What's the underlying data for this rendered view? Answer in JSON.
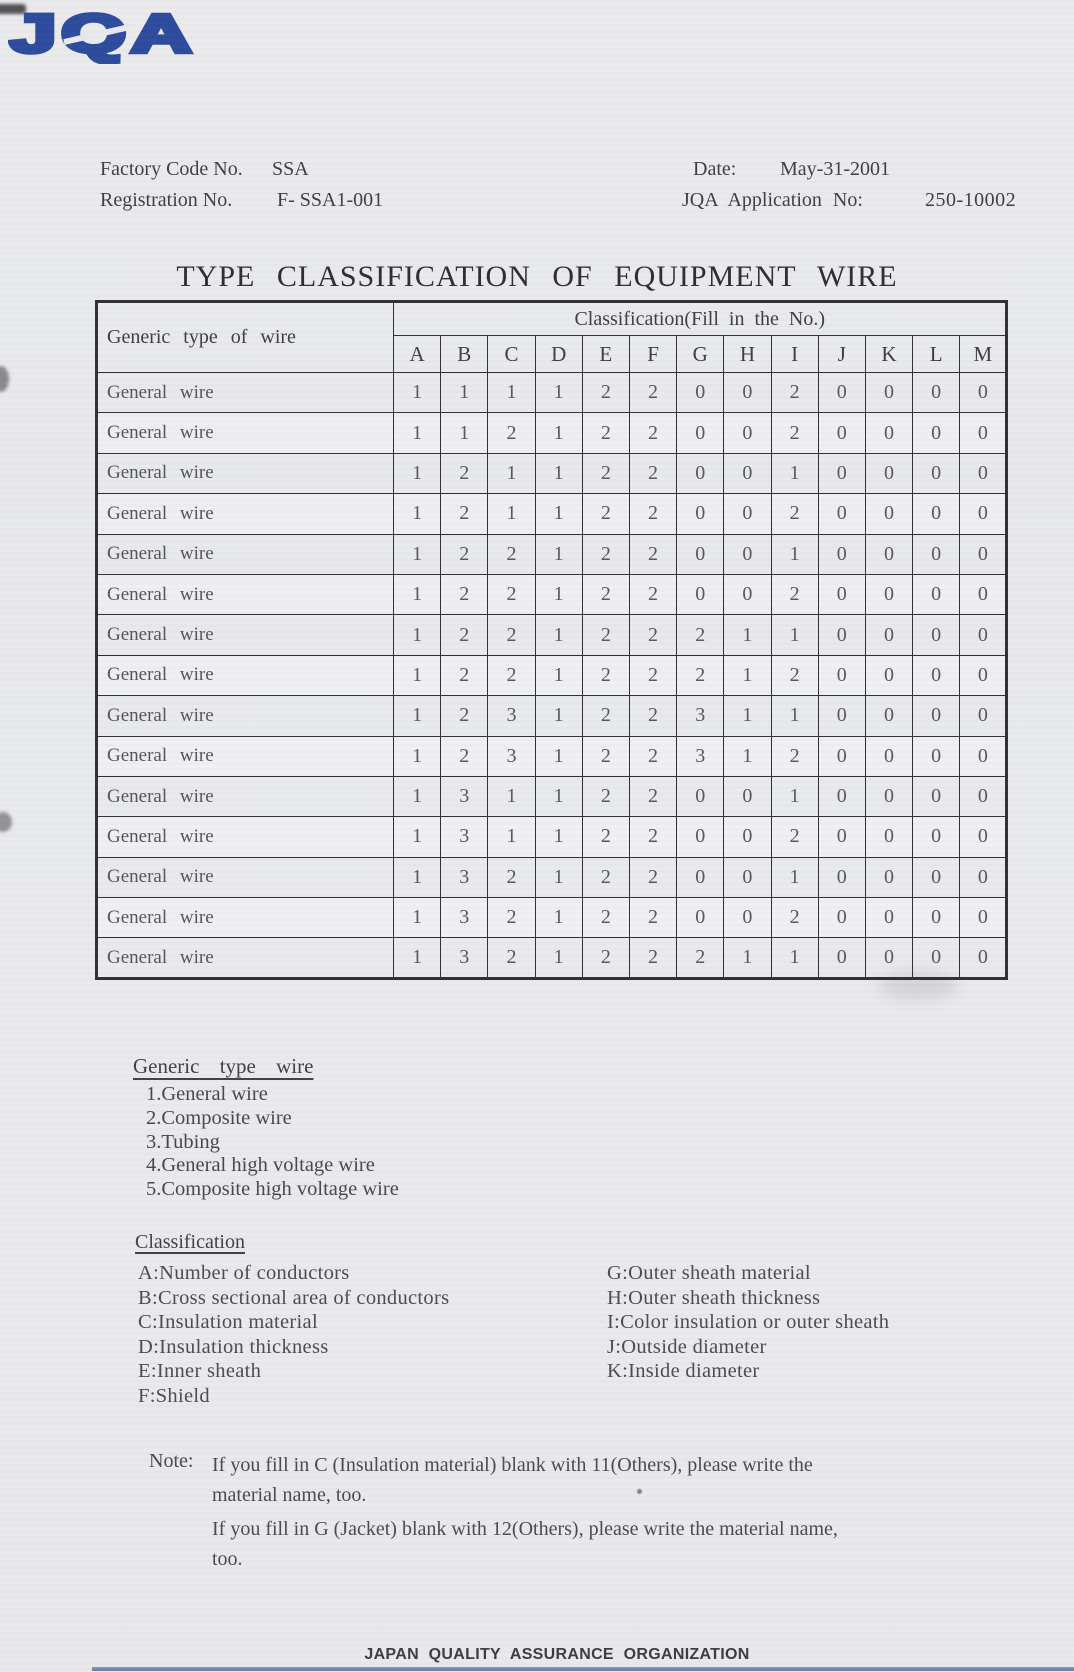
{
  "logo": {
    "text": "JQA"
  },
  "meta": {
    "factory_code_label": "Factory Code No.",
    "factory_code_value": "SSA",
    "registration_label": "Registration No.",
    "registration_value": "F- SSA1-001",
    "date_label": "Date:",
    "date_value": "May-31-2001",
    "application_label": "JQA Application No:",
    "application_value": "250-10002"
  },
  "title": "TYPE CLASSIFICATION OF EQUIPMENT WIRE",
  "table": {
    "generic_column_header": "Generic type of wire",
    "classification_header": "Classification(Fill in the No.)",
    "columns": [
      "A",
      "B",
      "C",
      "D",
      "E",
      "F",
      "G",
      "H",
      "I",
      "J",
      "K",
      "L",
      "M"
    ],
    "rows": [
      {
        "label": "General wire",
        "values": [
          "1",
          "1",
          "1",
          "1",
          "2",
          "2",
          "0",
          "0",
          "2",
          "0",
          "0",
          "0",
          "0"
        ]
      },
      {
        "label": "General wire",
        "values": [
          "1",
          "1",
          "2",
          "1",
          "2",
          "2",
          "0",
          "0",
          "2",
          "0",
          "0",
          "0",
          "0"
        ]
      },
      {
        "label": "General wire",
        "values": [
          "1",
          "2",
          "1",
          "1",
          "2",
          "2",
          "0",
          "0",
          "1",
          "0",
          "0",
          "0",
          "0"
        ]
      },
      {
        "label": "General wire",
        "values": [
          "1",
          "2",
          "1",
          "1",
          "2",
          "2",
          "0",
          "0",
          "2",
          "0",
          "0",
          "0",
          "0"
        ]
      },
      {
        "label": "General wire",
        "values": [
          "1",
          "2",
          "2",
          "1",
          "2",
          "2",
          "0",
          "0",
          "1",
          "0",
          "0",
          "0",
          "0"
        ]
      },
      {
        "label": "General wire",
        "values": [
          "1",
          "2",
          "2",
          "1",
          "2",
          "2",
          "0",
          "0",
          "2",
          "0",
          "0",
          "0",
          "0"
        ]
      },
      {
        "label": "General wire",
        "values": [
          "1",
          "2",
          "2",
          "1",
          "2",
          "2",
          "2",
          "1",
          "1",
          "0",
          "0",
          "0",
          "0"
        ]
      },
      {
        "label": "General wire",
        "values": [
          "1",
          "2",
          "2",
          "1",
          "2",
          "2",
          "2",
          "1",
          "2",
          "0",
          "0",
          "0",
          "0"
        ]
      },
      {
        "label": "General wire",
        "values": [
          "1",
          "2",
          "3",
          "1",
          "2",
          "2",
          "3",
          "1",
          "1",
          "0",
          "0",
          "0",
          "0"
        ]
      },
      {
        "label": "General wire",
        "values": [
          "1",
          "2",
          "3",
          "1",
          "2",
          "2",
          "3",
          "1",
          "2",
          "0",
          "0",
          "0",
          "0"
        ]
      },
      {
        "label": "General wire",
        "values": [
          "1",
          "3",
          "1",
          "1",
          "2",
          "2",
          "0",
          "0",
          "1",
          "0",
          "0",
          "0",
          "0"
        ]
      },
      {
        "label": "General wire",
        "values": [
          "1",
          "3",
          "1",
          "1",
          "2",
          "2",
          "0",
          "0",
          "2",
          "0",
          "0",
          "0",
          "0"
        ]
      },
      {
        "label": "General wire",
        "values": [
          "1",
          "3",
          "2",
          "1",
          "2",
          "2",
          "0",
          "0",
          "1",
          "0",
          "0",
          "0",
          "0"
        ]
      },
      {
        "label": "General wire",
        "values": [
          "1",
          "3",
          "2",
          "1",
          "2",
          "2",
          "0",
          "0",
          "2",
          "0",
          "0",
          "0",
          "0"
        ]
      },
      {
        "label": "General wire",
        "values": [
          "1",
          "3",
          "2",
          "1",
          "2",
          "2",
          "2",
          "1",
          "1",
          "0",
          "0",
          "0",
          "0"
        ]
      }
    ]
  },
  "generic_type": {
    "heading": "Generic type wire",
    "items": [
      "1.General wire",
      "2.Composite wire",
      "3.Tubing",
      "4.General high voltage wire",
      "5.Composite high voltage wire"
    ]
  },
  "classification_legend": {
    "heading": "Classification",
    "left": [
      "A:Number of conductors",
      "B:Cross sectional area of conductors",
      "C:Insulation material",
      "D:Insulation thickness",
      "E:Inner sheath",
      "F:Shield"
    ],
    "right": [
      "G:Outer sheath material",
      "H:Outer sheath thickness",
      "I:Color insulation or outer sheath",
      "J:Outside diameter",
      "K:Inside diameter"
    ]
  },
  "note": {
    "label": "Note:",
    "paragraphs": [
      [
        "If you fill in C (Insulation material) blank with 11(Others), please write the",
        "material name, too."
      ],
      [
        "If you fill in G (Jacket) blank with 12(Others), please write the material  name,",
        "too."
      ]
    ]
  },
  "footer": "JAPAN QUALITY ASSURANCE ORGANIZATION",
  "colors": {
    "logo_blue": "#2c4a9c",
    "paper": "#e9e9eb",
    "ink": "#3f3f46",
    "table_border": "#2e2e33",
    "footer_rule_blue": "#33508f"
  }
}
